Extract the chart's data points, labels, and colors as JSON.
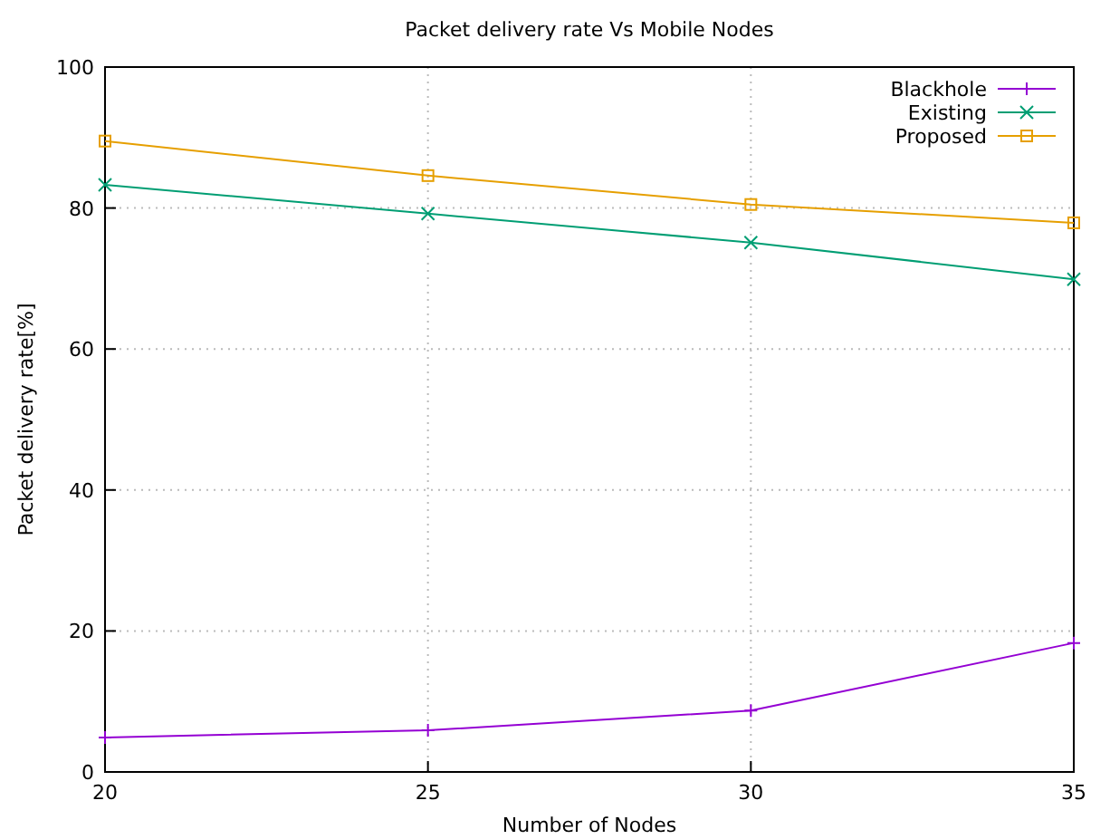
{
  "chart_data": {
    "type": "line",
    "title": "Packet delivery rate Vs Mobile Nodes",
    "xlabel": "Number of Nodes",
    "ylabel": "Packet delivery rate[%]",
    "x": [
      20,
      25,
      30,
      35
    ],
    "xlim": [
      20,
      35
    ],
    "xticks": [
      20,
      25,
      30,
      35
    ],
    "ylim": [
      0,
      100
    ],
    "yticks": [
      0,
      20,
      40,
      60,
      80,
      100
    ],
    "grid": true,
    "legend": "top right",
    "line_style": "solid",
    "series": [
      {
        "name": "Blackhole",
        "color": "#9400d3",
        "marker": "cross",
        "values": [
          4.9,
          5.9,
          8.7,
          18.3
        ]
      },
      {
        "name": "Existing",
        "color": "#009e73",
        "marker": "x",
        "values": [
          83.3,
          79.2,
          75.1,
          69.9
        ]
      },
      {
        "name": "Proposed",
        "color": "#e69f00",
        "marker": "square",
        "values": [
          89.5,
          84.6,
          80.5,
          77.9
        ]
      }
    ]
  }
}
